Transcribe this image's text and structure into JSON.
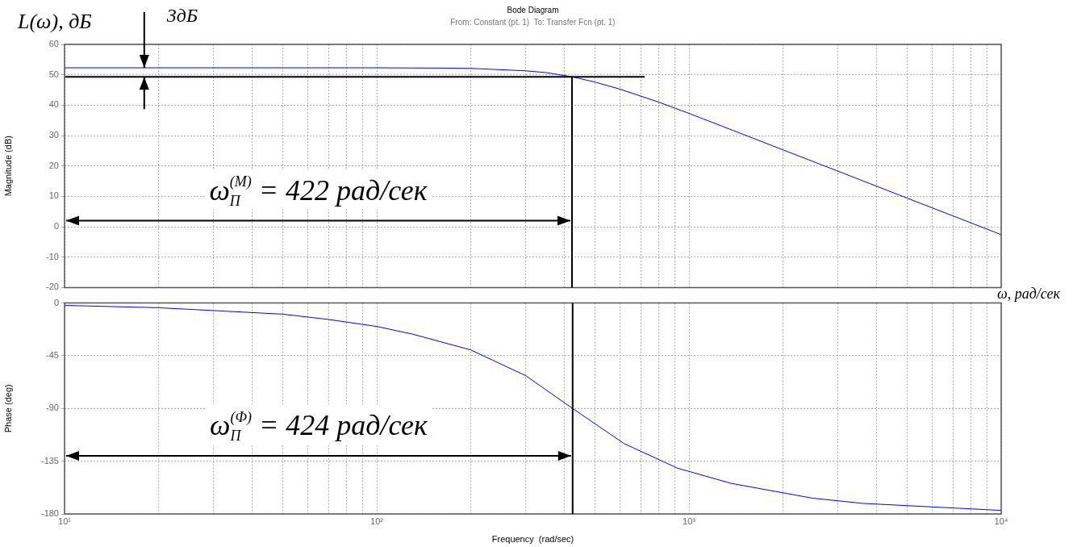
{
  "chart_data": [
    {
      "type": "line",
      "title": "Bode Diagram",
      "subtitle": "From: Constant (pt. 1)  To: Transfer Fcn (pt. 1)",
      "ylabel": "Magnitude (dB)",
      "log": "x",
      "grid": true,
      "tick_labels": "y",
      "xlim": [
        10,
        10000
      ],
      "ylim": [
        -20,
        60
      ],
      "yticks": [
        -20,
        -10,
        0,
        10,
        20,
        30,
        40,
        50,
        60
      ],
      "xticks": [
        {
          "value": 10,
          "label": null
        },
        {
          "value": 20,
          "label": null
        },
        {
          "value": 30,
          "label": null
        },
        {
          "value": 40,
          "label": null
        },
        {
          "value": 50,
          "label": null
        },
        {
          "value": 60,
          "label": null
        },
        {
          "value": 70,
          "label": null
        },
        {
          "value": 80,
          "label": null
        },
        {
          "value": 90,
          "label": null
        },
        {
          "value": 100,
          "label": null
        },
        {
          "value": 200,
          "label": null
        },
        {
          "value": 300,
          "label": null
        },
        {
          "value": 400,
          "label": null
        },
        {
          "value": 500,
          "label": null
        },
        {
          "value": 600,
          "label": null
        },
        {
          "value": 700,
          "label": null
        },
        {
          "value": 800,
          "label": null
        },
        {
          "value": 900,
          "label": null
        },
        {
          "value": 1000,
          "label": null
        },
        {
          "value": 2000,
          "label": null
        },
        {
          "value": 3000,
          "label": null
        },
        {
          "value": 4000,
          "label": null
        },
        {
          "value": 5000,
          "label": null
        },
        {
          "value": 6000,
          "label": null
        },
        {
          "value": 7000,
          "label": null
        },
        {
          "value": 8000,
          "label": null
        },
        {
          "value": 9000,
          "label": null
        },
        {
          "value": 10000,
          "label": null
        }
      ],
      "x": [
        10,
        50,
        100,
        160,
        200,
        300,
        350,
        424,
        500,
        600,
        700,
        800,
        1000,
        1500,
        2000,
        3000,
        5000,
        7000,
        10000
      ],
      "series": [
        {
          "color": "#0000ff",
          "values": [
            52.3,
            52.3,
            52.3,
            52.2,
            52.1,
            51.3,
            50.7,
            49.3,
            47.6,
            45.3,
            43,
            41,
            37.3,
            30.3,
            25.3,
            18.3,
            9.4,
            3.6,
            -2.6
          ]
        }
      ],
      "ref_lines": [
        {
          "axis": "y",
          "value": 49.3,
          "color": "#000000"
        },
        {
          "axis": "x",
          "value": 422,
          "color": "#000000"
        }
      ],
      "annotations": [
        "L(ω), дБ",
        "ω, рад/сек",
        "ω$_{П}$$^{(M)}$ = 422 рад/сек",
        {
          "text": "3дБ",
          "x": 18,
          "y": 52.3
        }
      ]
    },
    {
      "type": "line",
      "xlabel": "Frequency  (rad/sec)",
      "ylabel": "Phase (deg)",
      "log": "x",
      "grid": true,
      "xlim": [
        10,
        10000
      ],
      "ylim": [
        -180,
        0
      ],
      "yticks": [
        -180,
        -135,
        -90,
        -45,
        0
      ],
      "xticks": [
        {
          "value": 10,
          "label": "10¹"
        },
        {
          "value": 20,
          "label": null
        },
        {
          "value": 30,
          "label": null
        },
        {
          "value": 40,
          "label": null
        },
        {
          "value": 50,
          "label": null
        },
        {
          "value": 60,
          "label": null
        },
        {
          "value": 70,
          "label": null
        },
        {
          "value": 80,
          "label": null
        },
        {
          "value": 90,
          "label": null
        },
        {
          "value": 100,
          "label": "10²"
        },
        {
          "value": 200,
          "label": null
        },
        {
          "value": 300,
          "label": null
        },
        {
          "value": 400,
          "label": null
        },
        {
          "value": 500,
          "label": null
        },
        {
          "value": 600,
          "label": null
        },
        {
          "value": 700,
          "label": null
        },
        {
          "value": 800,
          "label": null
        },
        {
          "value": 900,
          "label": null
        },
        {
          "value": 1000,
          "label": "10³"
        },
        {
          "value": 2000,
          "label": null
        },
        {
          "value": 3000,
          "label": null
        },
        {
          "value": 4000,
          "label": null
        },
        {
          "value": 5000,
          "label": null
        },
        {
          "value": 6000,
          "label": null
        },
        {
          "value": 7000,
          "label": null
        },
        {
          "value": 8000,
          "label": null
        },
        {
          "value": 9000,
          "label": null
        },
        {
          "value": 10000,
          "label": "10⁴"
        }
      ],
      "x": [
        10,
        20,
        50,
        70,
        100,
        130,
        200,
        300,
        424,
        620,
        920,
        1370,
        2480,
        3600,
        10000
      ],
      "series": [
        {
          "color": "#0000ff",
          "values": [
            -2,
            -4,
            -9.5,
            -14,
            -20,
            -26.5,
            -40,
            -62,
            -90,
            -120,
            -141,
            -154,
            -166.5,
            -171,
            -177
          ]
        }
      ],
      "ref_lines": [
        {
          "axis": "x",
          "value": 424,
          "color": "#000000"
        }
      ],
      "annotations": [
        "ω$_{П}$$^{(Ф)}$ = 424 рад/сек"
      ]
    }
  ]
}
